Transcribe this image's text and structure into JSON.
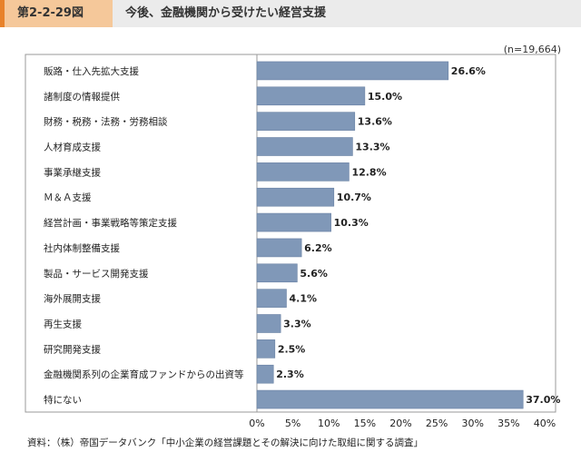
{
  "header": {
    "figure_number": "第2-2-29図",
    "title": "今後、金融機関から受けたい経営支援"
  },
  "sample_size": "(n=19,664)",
  "source": "資料：（株）帝国データバンク「中小企業の経営課題とその解決に向けた取組に関する調査」",
  "colors": {
    "bar": "#8098b8",
    "bar_stroke": "#6a82a4",
    "accent": "#e8822a"
  },
  "chart_data": {
    "type": "bar",
    "orientation": "horizontal",
    "categories": [
      "販路・仕入先拡大支援",
      "諸制度の情報提供",
      "財務・税務・法務・労務相談",
      "人材育成支援",
      "事業承継支援",
      "Ｍ＆Ａ支援",
      "経営計画・事業戦略等策定支援",
      "社内体制整備支援",
      "製品・サービス開発支援",
      "海外展開支援",
      "再生支援",
      "研究開発支援",
      "金融機関系列の企業育成ファンドからの出資等",
      "特にない"
    ],
    "values": [
      26.6,
      15.0,
      13.6,
      13.3,
      12.8,
      10.7,
      10.3,
      6.2,
      5.6,
      4.1,
      3.3,
      2.5,
      2.3,
      37.0
    ],
    "value_labels": [
      "26.6%",
      "15.0%",
      "13.6%",
      "13.3%",
      "12.8%",
      "10.7%",
      "10.3%",
      "6.2%",
      "5.6%",
      "4.1%",
      "3.3%",
      "2.5%",
      "2.3%",
      "37.0%"
    ],
    "xlim": [
      0,
      40
    ],
    "xticks": [
      0,
      5,
      10,
      15,
      20,
      25,
      30,
      35,
      40
    ],
    "xtick_labels": [
      "0%",
      "5%",
      "10%",
      "15%",
      "20%",
      "25%",
      "30%",
      "35%",
      "40%"
    ],
    "grid": false,
    "legend": "none"
  }
}
